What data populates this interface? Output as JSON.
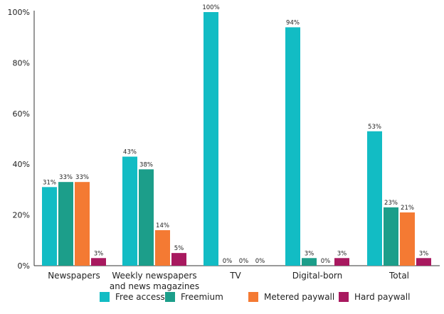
{
  "chart_data": {
    "type": "bar",
    "title": "",
    "xlabel": "",
    "ylabel": "",
    "ylim": [
      0,
      100
    ],
    "y_ticks": [
      0,
      20,
      40,
      60,
      80,
      100
    ],
    "y_tick_labels": [
      "0%",
      "20%",
      "40%",
      "60%",
      "80%",
      "100%"
    ],
    "grid": false,
    "legend_position": "bottom",
    "categories": [
      "Newspapers",
      "Weekly newspapers and news magazines",
      "TV",
      "Digital-born",
      "Total"
    ],
    "category_label_lines": [
      [
        "Newspapers"
      ],
      [
        "Weekly newspapers",
        "and news magazines"
      ],
      [
        "TV"
      ],
      [
        "Digital-born"
      ],
      [
        "Total"
      ]
    ],
    "series": [
      {
        "name": "Free access",
        "color": "#12bcc4",
        "values": [
          31,
          43,
          100,
          94,
          53
        ],
        "labels": [
          "31%",
          "43%",
          "100%",
          "94%",
          "53%"
        ]
      },
      {
        "name": "Freemium",
        "color": "#1c9e8a",
        "values": [
          33,
          38,
          0,
          3,
          23
        ],
        "labels": [
          "33%",
          "38%",
          "0%",
          "3%",
          "23%"
        ]
      },
      {
        "name": "Metered paywall",
        "color": "#f47a33",
        "values": [
          33,
          14,
          0,
          0,
          21
        ],
        "labels": [
          "33%",
          "14%",
          "0%",
          "0%",
          "21%"
        ]
      },
      {
        "name": "Hard paywall",
        "color": "#a8195f",
        "values": [
          3,
          5,
          0,
          3,
          3
        ],
        "labels": [
          "3%",
          "5%",
          "0%",
          "3%",
          "3%"
        ]
      }
    ]
  }
}
